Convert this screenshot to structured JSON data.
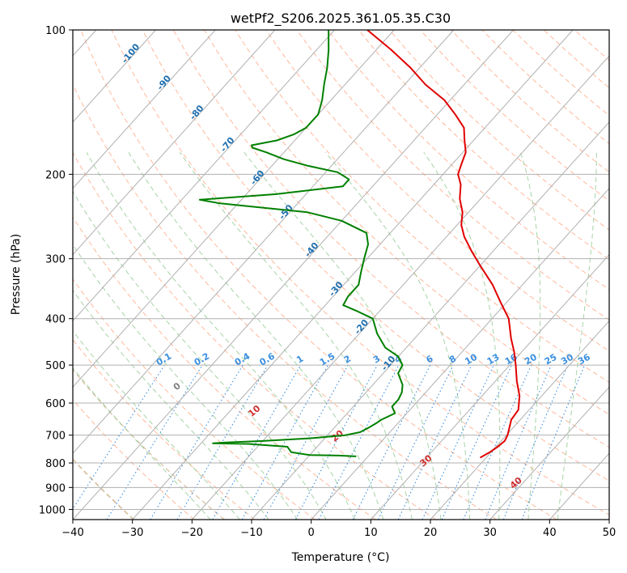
{
  "chart_data": {
    "type": "skew-t",
    "title": "wetPf2_S206.2025.361.05.35.C30",
    "xlabel": "Temperature (°C)",
    "ylabel": "Pressure (hPa)",
    "xlim": [
      -40,
      50
    ],
    "ylim": [
      1050,
      100
    ],
    "x_ticks": [
      "−40",
      "−30",
      "−20",
      "−10",
      "0",
      "10",
      "20",
      "30",
      "40",
      "50"
    ],
    "y_ticks": [
      "100",
      "200",
      "300",
      "400",
      "500",
      "600",
      "700",
      "800",
      "900",
      "1000"
    ],
    "colors": {
      "temperature": "#e00000",
      "dewpoint": "#008000",
      "isotherm": "#b0b0b0",
      "dry_adiabat": "#ffa07a",
      "moist_adiabat": "#90c890",
      "mixing_ratio": "#3a8fe0",
      "isotherm_label": "#1f6fb0",
      "theta_label": "#d03030",
      "tan_curve": "#d8c0a0"
    },
    "temperature_series": {
      "name": "Temperature",
      "p": [
        780,
        760,
        740,
        720,
        700,
        670,
        650,
        620,
        580,
        540,
        500,
        470,
        440,
        400,
        370,
        340,
        310,
        290,
        270,
        255,
        240,
        225,
        210,
        200,
        190,
        180,
        170,
        160,
        150,
        140,
        130,
        120,
        110,
        100
      ],
      "t": [
        19,
        19.8,
        20.3,
        20.6,
        20.2,
        19.2,
        18.5,
        18.2,
        16.3,
        13.6,
        11.0,
        8.8,
        6.2,
        2.8,
        -1.0,
        -5.0,
        -10.0,
        -13.5,
        -17.0,
        -19.3,
        -21.0,
        -23.5,
        -25.5,
        -27.5,
        -28.5,
        -29.5,
        -31.5,
        -33.5,
        -37.0,
        -41.0,
        -46.5,
        -51.5,
        -57.5,
        -64.5
      ]
    },
    "dewpoint_series": {
      "name": "Dewpoint",
      "p": [
        775,
        772,
        770,
        760,
        740,
        730,
        728,
        725,
        720,
        710,
        700,
        690,
        680,
        675,
        670,
        660,
        650,
        630,
        610,
        590,
        570,
        550,
        520,
        500,
        480,
        460,
        430,
        400,
        385,
        375,
        360,
        340,
        320,
        300,
        280,
        265,
        250,
        240,
        230,
        226,
        220,
        212,
        205,
        198,
        192,
        186,
        180,
        176,
        174,
        170,
        165,
        160,
        150,
        140,
        130,
        120,
        110,
        100
      ],
      "t": [
        -2.0,
        -5.0,
        -10.0,
        -13.5,
        -15.0,
        -22.0,
        -28.0,
        -26.0,
        -20.0,
        -12.0,
        -7.0,
        -5.0,
        -4.5,
        -4.2,
        -4.0,
        -3.6,
        -3.3,
        -2.0,
        -3.5,
        -3.5,
        -4.0,
        -5.0,
        -7.5,
        -8.0,
        -10.0,
        -13.5,
        -17.0,
        -20.0,
        -24.0,
        -27.0,
        -27.5,
        -27.5,
        -29.0,
        -30.5,
        -32.0,
        -34.0,
        -40.0,
        -47.0,
        -63.0,
        -67.0,
        -55.0,
        -45.0,
        -45.0,
        -48.0,
        -54.0,
        -59.0,
        -63.0,
        -66.0,
        -66.5,
        -63.0,
        -61.0,
        -60.0,
        -60.0,
        -61.5,
        -63.5,
        -65.5,
        -68.0,
        -71.0
      ]
    },
    "isotherm_labels": [
      "-100",
      "-90",
      "-80",
      "-70",
      "-60",
      "-50",
      "-40",
      "-30",
      "-20",
      "-10"
    ],
    "mixing_ratio_labels": [
      "0.1",
      "0.2",
      "0.4",
      "0.6",
      "1",
      "1.5",
      "2",
      "3",
      "4",
      "6",
      "8",
      "10",
      "13",
      "16",
      "20",
      "25",
      "30",
      "36"
    ],
    "theta_labels": [
      "0",
      "10",
      "20",
      "30",
      "40"
    ]
  }
}
